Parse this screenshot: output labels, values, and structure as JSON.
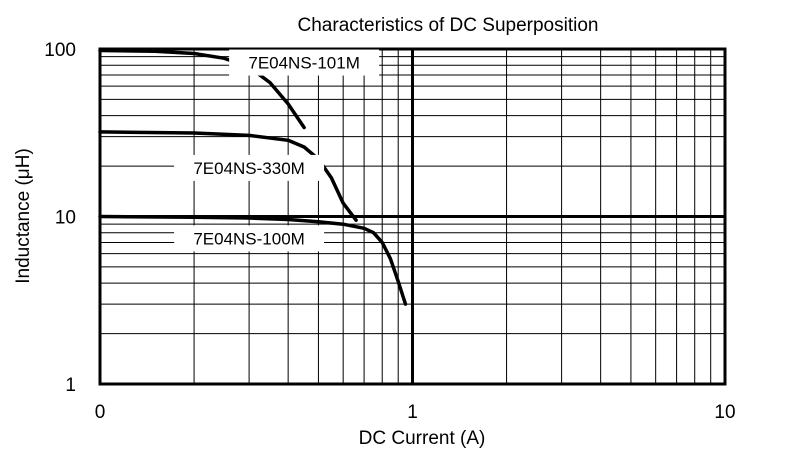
{
  "chart_data": {
    "type": "line",
    "title": "Characteristics  of  DC  Superposition",
    "xlabel": "DC Current (A)",
    "ylabel": "Inductance (μH)",
    "x_scale": "log",
    "y_scale": "log",
    "xlim": [
      0.1,
      10
    ],
    "ylim": [
      1,
      100
    ],
    "x_tick_labels": [
      {
        "value": 0.1,
        "label": "0"
      },
      {
        "value": 1,
        "label": "1"
      },
      {
        "value": 10,
        "label": "10"
      }
    ],
    "y_tick_labels": [
      {
        "value": 1,
        "label": "1"
      },
      {
        "value": 10,
        "label": "10"
      },
      {
        "value": 100,
        "label": "100"
      }
    ],
    "grid": true,
    "series": [
      {
        "name": "7E04NS-101M",
        "x": [
          0.1,
          0.15,
          0.2,
          0.25,
          0.3,
          0.35,
          0.4,
          0.45
        ],
        "y": [
          98,
          97,
          94,
          88,
          78,
          63,
          47,
          34
        ],
        "label_position": {
          "x": 0.45,
          "y": 83
        }
      },
      {
        "name": "7E04NS-330M",
        "x": [
          0.1,
          0.2,
          0.3,
          0.4,
          0.45,
          0.5,
          0.55,
          0.6,
          0.66
        ],
        "y": [
          32,
          31.5,
          30.5,
          28.5,
          26,
          22,
          17,
          12,
          9.5
        ],
        "label_position": {
          "x": 0.3,
          "y": 19.5
        }
      },
      {
        "name": "7E04NS-100M",
        "x": [
          0.1,
          0.2,
          0.3,
          0.4,
          0.5,
          0.6,
          0.7,
          0.75,
          0.8,
          0.85,
          0.9,
          0.95
        ],
        "y": [
          10,
          9.9,
          9.8,
          9.6,
          9.3,
          9.0,
          8.5,
          8.0,
          7.0,
          5.6,
          4.1,
          3.0
        ],
        "label_position": {
          "x": 0.3,
          "y": 7.4
        }
      }
    ]
  }
}
